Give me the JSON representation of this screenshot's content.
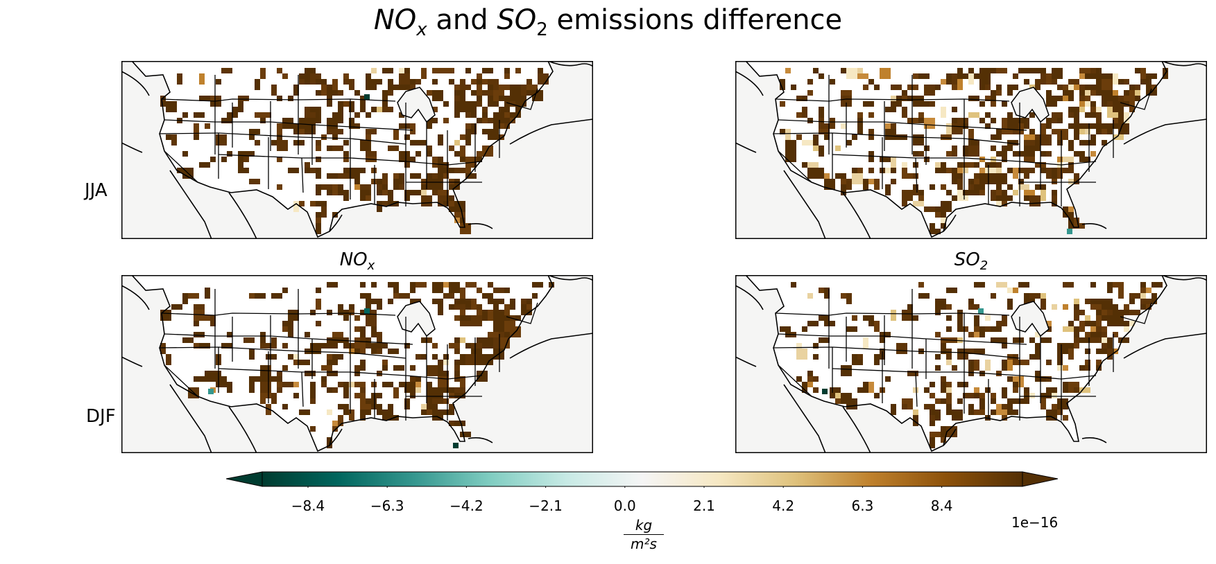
{
  "title": {
    "pre": "NO",
    "pre_sub": "x",
    "mid": " and ",
    "so": "SO",
    "so_sub": "2",
    "post": " emissions difference"
  },
  "columns": [
    {
      "base": "NO",
      "sub": "x"
    },
    {
      "base": "SO",
      "sub": "2"
    }
  ],
  "rows": [
    "JJA",
    "DJF"
  ],
  "colorbar": {
    "colormap": "BrBG_r",
    "extend": "both",
    "ticks": [
      "−8.4",
      "−6.3",
      "−4.2",
      "−2.1",
      "0.0",
      "2.1",
      "4.2",
      "6.3",
      "8.4"
    ],
    "offset": "1e−16",
    "units_num": "kg",
    "units_den": "m²s"
  },
  "colors": {
    "ocean": "#f5f5f4",
    "positive_max": "#543005",
    "negative_max": "#003c30",
    "border": "#000000"
  }
}
